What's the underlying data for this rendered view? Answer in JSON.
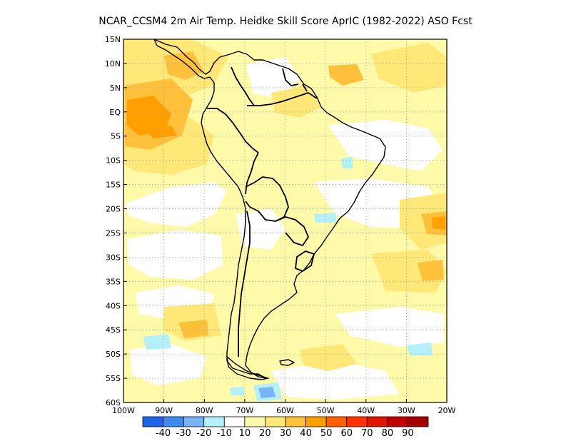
{
  "title": "NCAR_CCSM4  2m Air Temp. Heidke Skill Score AprIC (1982-2022) ASO Fcst",
  "map": {
    "lat_labels": [
      "15N",
      "10N",
      "5N",
      "EQ",
      "5S",
      "10S",
      "15S",
      "20S",
      "25S",
      "30S",
      "35S",
      "40S",
      "45S",
      "50S",
      "55S",
      "60S"
    ],
    "lon_labels": [
      "100W",
      "90W",
      "80W",
      "70W",
      "60W",
      "50W",
      "40W",
      "30W",
      "20W"
    ],
    "lat_range": [
      -60,
      15
    ],
    "lon_range": [
      -100,
      -20
    ],
    "grid": "dotted"
  },
  "colorbar": {
    "labels": [
      "-40",
      "-30",
      "-20",
      "-10",
      "10",
      "20",
      "30",
      "40",
      "50",
      "60",
      "70",
      "80",
      "90"
    ],
    "colors": [
      "#1e64e6",
      "#3c8cf0",
      "#78b4f5",
      "#b4f0fa",
      "#ffffff",
      "#fffaaa",
      "#ffe878",
      "#ffc03c",
      "#ffa000",
      "#ff6000",
      "#ff3200",
      "#e11400",
      "#c00000",
      "#a50000"
    ]
  },
  "colors": {
    "land_outline": "#000000",
    "grid": "#9a9a9a",
    "frame": "#000000"
  }
}
